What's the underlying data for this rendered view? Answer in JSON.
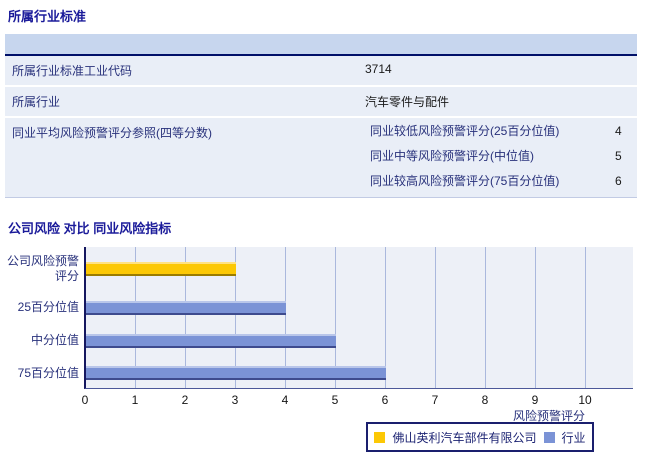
{
  "section1": {
    "title": "所属行业标准",
    "rows": [
      {
        "label": "所属行业标准工业代码",
        "value": "3714"
      },
      {
        "label": "所属行业",
        "value": "汽车零件与配件"
      },
      {
        "label": "同业平均风险预警评分参照(四等分数)",
        "subrows": [
          {
            "label": "同业较低风险预警评分(25百分位值)",
            "value": "4"
          },
          {
            "label": "同业中等风险预警评分(中位值)",
            "value": "5"
          },
          {
            "label": "同业较高风险预警评分(75百分位值)",
            "value": "6"
          }
        ]
      }
    ]
  },
  "section2": {
    "title": "公司风险 对比 同业风险指标"
  },
  "chart_data": {
    "type": "bar",
    "orientation": "horizontal",
    "title": "公司风险 对比 同业风险指标",
    "categories": [
      "公司风险预警评分",
      "25百分位值",
      "中分位值",
      "75百分位值"
    ],
    "bars": [
      {
        "label": "公司风险预警\n评分",
        "value": 3,
        "series": "company"
      },
      {
        "label": "25百分位值",
        "value": 4,
        "series": "industry"
      },
      {
        "label": "中分位值",
        "value": 5,
        "series": "industry"
      },
      {
        "label": "75百分位值",
        "value": 6,
        "series": "industry"
      }
    ],
    "series": [
      {
        "key": "company",
        "name": "佛山英利汽车部件有限公司",
        "color": "#fcc805"
      },
      {
        "key": "industry",
        "name": "行业",
        "color": "#7b93d6"
      }
    ],
    "xlabel": "风险预警评分",
    "xlim": [
      0,
      10
    ],
    "xticks": [
      "0",
      "1",
      "2",
      "3",
      "4",
      "5",
      "6",
      "7",
      "8",
      "9",
      "10"
    ],
    "grid": "vertical",
    "legend_position": "bottom-right",
    "colors": {
      "plot_background": "#edf0f7",
      "gridline": "#aab8dd",
      "axis": "#15175f"
    }
  }
}
